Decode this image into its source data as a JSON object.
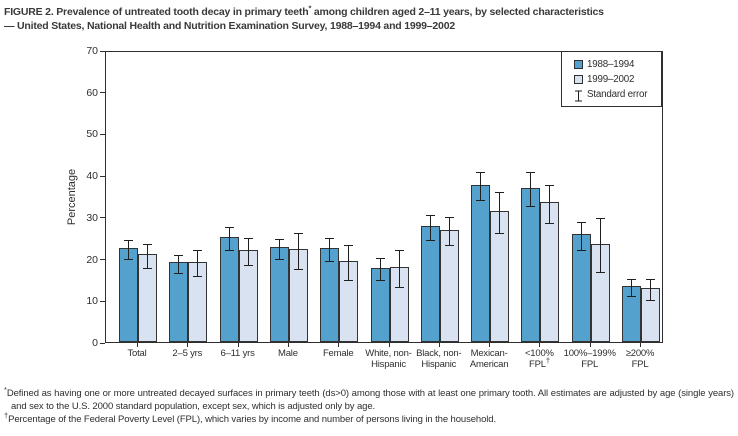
{
  "figure": {
    "title_line1_pre": "FIGURE 2. Prevalence of untreated tooth decay in primary teeth",
    "title_line1_sup": "*",
    "title_line1_post": " among children aged 2–11 years, by selected characteristics",
    "title_line2": "— United States, National Health and Nutrition Examination Survey, 1988–1994 and 1999–2002"
  },
  "chart_data": {
    "type": "bar",
    "title": "FIGURE 2. Prevalence of untreated tooth decay in primary teeth* among children aged 2–11 years, by selected characteristics — United States, National Health and Nutrition Examination Survey, 1988–1994 and 1999–2002",
    "xlabel": "",
    "ylabel": "Percentage",
    "ylim": [
      0,
      70
    ],
    "yticks": [
      0,
      10,
      20,
      30,
      40,
      50,
      60,
      70
    ],
    "grid": false,
    "legend_position": "top-right",
    "categories": [
      "Total",
      "2–5 yrs",
      "6–11 yrs",
      "Male",
      "Female",
      "White, non-Hispanic",
      "Black, non-Hispanic",
      "Mexican-American",
      "<100% FPL†",
      "100%–199% FPL",
      "≥200% FPL"
    ],
    "category_label_lines": [
      [
        "Total"
      ],
      [
        "2–5 yrs"
      ],
      [
        "6–11 yrs"
      ],
      [
        "Male"
      ],
      [
        "Female"
      ],
      [
        "White, non-",
        "Hispanic"
      ],
      [
        "Black, non-",
        "Hispanic"
      ],
      [
        "Mexican-",
        "American"
      ],
      [
        "<100%",
        "FPL†"
      ],
      [
        "100%–199%",
        "FPL"
      ],
      [
        "≥200%",
        "FPL"
      ]
    ],
    "series": [
      {
        "name": "1988–1994",
        "color": "#53a1cc",
        "values": [
          22.6,
          19.1,
          25.1,
          22.7,
          22.5,
          17.8,
          27.9,
          37.7,
          37.0,
          25.8,
          13.5
        ],
        "standard_errors": [
          2.3,
          2.2,
          2.8,
          2.4,
          2.8,
          2.6,
          3.0,
          3.4,
          4.0,
          3.3,
          2.0
        ]
      },
      {
        "name": "1999–2002",
        "color": "#d9e2f1",
        "values": [
          21.0,
          19.3,
          22.1,
          22.2,
          19.4,
          18.0,
          26.9,
          31.5,
          33.5,
          23.6,
          13.0
        ],
        "standard_errors": [
          2.9,
          3.0,
          3.3,
          4.3,
          4.1,
          4.4,
          3.4,
          4.9,
          4.6,
          6.5,
          2.5
        ]
      }
    ],
    "error_bar_label": "Standard error",
    "error_bar_color": "#1f1f1f",
    "bar_border_color": "#333333"
  },
  "footnotes": [
    {
      "marker": "*",
      "text": "Defined as having one or more untreated decayed surfaces in primary teeth (ds>0) among those with at least one primary tooth. All estimates are adjusted by age (single years) and sex to the U.S. 2000 standard population, except sex, which is adjusted only by age."
    },
    {
      "marker": "†",
      "text": "Percentage of the Federal Poverty Level (FPL), which varies by income and number of persons living in the household."
    }
  ]
}
